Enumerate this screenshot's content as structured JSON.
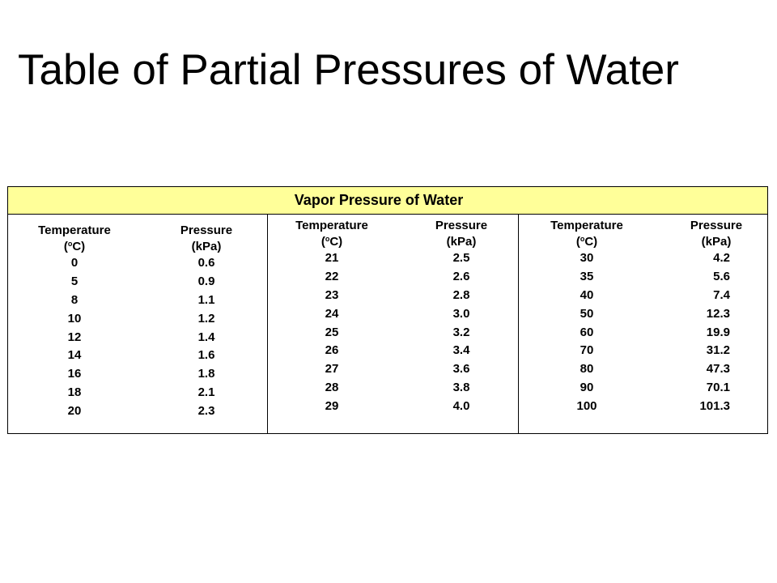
{
  "slide": {
    "title": "Table of Partial Pressures of Water"
  },
  "table": {
    "title": "Vapor Pressure of Water",
    "header_bg": "#ffff99",
    "groups": [
      {
        "temp_header": "Temperature",
        "temp_unit_pre": "(",
        "temp_unit_sup": "o",
        "temp_unit_post": "C)",
        "pressure_header": "Pressure",
        "pressure_unit": "(kPa)",
        "temps": [
          "0",
          "5",
          "8",
          "10",
          "12",
          "14",
          "16",
          "18",
          "20"
        ],
        "pressures": [
          "0.6",
          "0.9",
          "1.1",
          "1.2",
          "1.4",
          "1.6",
          "1.8",
          "2.1",
          "2.3"
        ]
      },
      {
        "temp_header": "Temperature",
        "temp_unit_pre": "(",
        "temp_unit_sup": "o",
        "temp_unit_post": "C)",
        "pressure_header": "Pressure",
        "pressure_unit": "(kPa)",
        "temps": [
          "21",
          "22",
          "23",
          "24",
          "25",
          "26",
          "27",
          "28",
          "29"
        ],
        "pressures": [
          "2.5",
          "2.6",
          "2.8",
          "3.0",
          "3.2",
          "3.4",
          "3.6",
          "3.8",
          "4.0"
        ]
      },
      {
        "temp_header": "Temperature",
        "temp_unit_pre": "(",
        "temp_unit_sup": "o",
        "temp_unit_post": "C)",
        "pressure_header": "Pressure",
        "pressure_unit": "(kPa)",
        "temps": [
          "30",
          "35",
          "40",
          "50",
          "60",
          "70",
          "80",
          "90",
          "100"
        ],
        "pressures": [
          "4.2",
          "5.6",
          "7.4",
          "12.3",
          "19.9",
          "31.2",
          "47.3",
          "70.1",
          "101.3"
        ]
      }
    ]
  }
}
